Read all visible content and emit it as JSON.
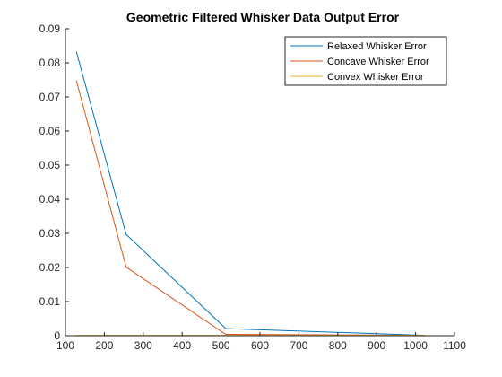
{
  "chart_data": {
    "type": "line",
    "title": "Geometric Filtered Whisker Data Output Error",
    "xlabel": "",
    "ylabel": "",
    "xlim": [
      100,
      1100
    ],
    "ylim": [
      0,
      0.09
    ],
    "xticks": [
      100,
      200,
      300,
      400,
      500,
      600,
      700,
      800,
      900,
      1000,
      1100
    ],
    "yticks": [
      0,
      0.01,
      0.02,
      0.03,
      0.04,
      0.05,
      0.06,
      0.07,
      0.08,
      0.09
    ],
    "x": [
      128,
      256,
      512,
      1024
    ],
    "grid": false,
    "legend_position": "top-right",
    "series": [
      {
        "name": "Relaxed Whisker Error",
        "color": "#0072BD",
        "values": [
          0.0833,
          0.0297,
          0.0021,
          0.0001
        ]
      },
      {
        "name": "Concave Whisker Error",
        "color": "#D95319",
        "values": [
          0.0748,
          0.0201,
          0.0004,
          0.0001
        ]
      },
      {
        "name": "Convex Whisker Error",
        "color": "#EDB120",
        "values": [
          0.0001,
          0.0001,
          0.0001,
          0.0001
        ]
      }
    ]
  }
}
